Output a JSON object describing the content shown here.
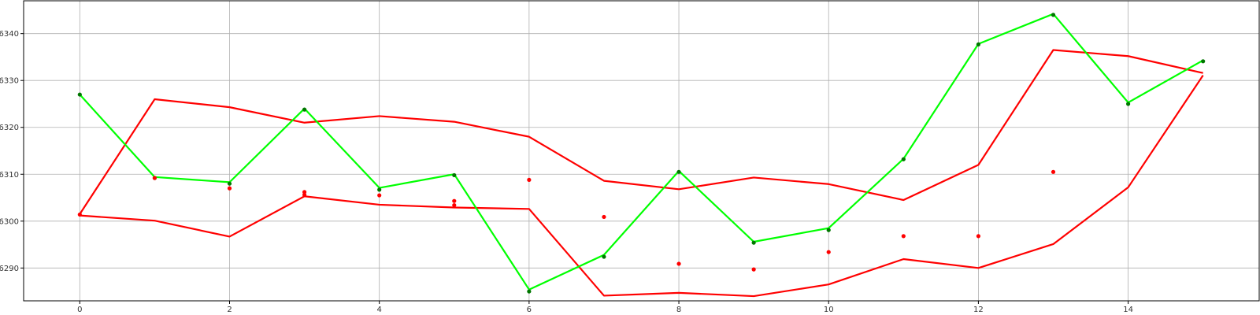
{
  "chart_data": {
    "type": "line",
    "title": "",
    "xlabel": "",
    "ylabel": "",
    "xlim": [
      -0.75,
      15.75
    ],
    "ylim": [
      6283,
      6347
    ],
    "grid": true,
    "x_ticks": [
      0,
      2,
      4,
      6,
      8,
      10,
      12,
      14
    ],
    "y_ticks": [
      6290,
      6300,
      6310,
      6320,
      6330,
      6340
    ],
    "series": [
      {
        "color": "#ff0000",
        "kind": "line",
        "x": [
          0,
          1,
          2,
          3,
          4,
          5,
          6,
          7,
          8,
          9,
          10,
          11,
          12,
          13,
          14,
          15
        ],
        "values": [
          6301.5,
          6326.0,
          6324.3,
          6321.0,
          6322.4,
          6321.2,
          6318.0,
          6308.6,
          6306.8,
          6309.3,
          6307.9,
          6304.5,
          6312.0,
          6336.5,
          6335.2,
          6331.6
        ]
      },
      {
        "color": "#ff0000",
        "kind": "line",
        "x": [
          0,
          1,
          2,
          3,
          4,
          5,
          6,
          7,
          8,
          9,
          10,
          11,
          12,
          13,
          14,
          15
        ],
        "values": [
          6301.2,
          6300.1,
          6296.7,
          6305.3,
          6303.5,
          6302.9,
          6302.6,
          6284.1,
          6284.7,
          6284.0,
          6286.5,
          6291.9,
          6290.0,
          6295.1,
          6307.2,
          6331.1
        ]
      },
      {
        "color": "#00ff00",
        "kind": "line",
        "x": [
          0,
          1,
          2,
          3,
          4,
          5,
          6,
          7,
          8,
          9,
          10,
          11,
          12,
          13,
          14,
          15
        ],
        "values": [
          6327.0,
          6309.4,
          6308.3,
          6324.0,
          6307.1,
          6310.0,
          6285.4,
          6292.8,
          6310.7,
          6295.6,
          6298.5,
          6313.3,
          6337.8,
          6344.2,
          6325.3,
          6334.3
        ]
      },
      {
        "color": "#007700",
        "kind": "scatter",
        "x": [
          0,
          1,
          2,
          3,
          4,
          5,
          6,
          7,
          8,
          9,
          10,
          11,
          12,
          13,
          14,
          15
        ],
        "values": [
          6327.0,
          6309.2,
          6308.0,
          6323.8,
          6306.7,
          6309.8,
          6285.0,
          6292.4,
          6310.5,
          6295.4,
          6298.1,
          6313.2,
          6337.7,
          6344.0,
          6325.0,
          6334.1
        ]
      },
      {
        "color": "#ff0000",
        "kind": "scatter",
        "x": [
          0,
          1,
          2,
          3,
          3,
          4,
          5,
          5,
          6,
          7,
          8,
          9,
          10,
          11,
          12,
          13
        ],
        "values": [
          6301.4,
          6309.2,
          6307.0,
          6306.2,
          6305.6,
          6305.5,
          6304.3,
          6303.4,
          6308.8,
          6300.9,
          6290.9,
          6289.7,
          6293.4,
          6296.8,
          6296.8,
          6310.5
        ]
      }
    ]
  }
}
